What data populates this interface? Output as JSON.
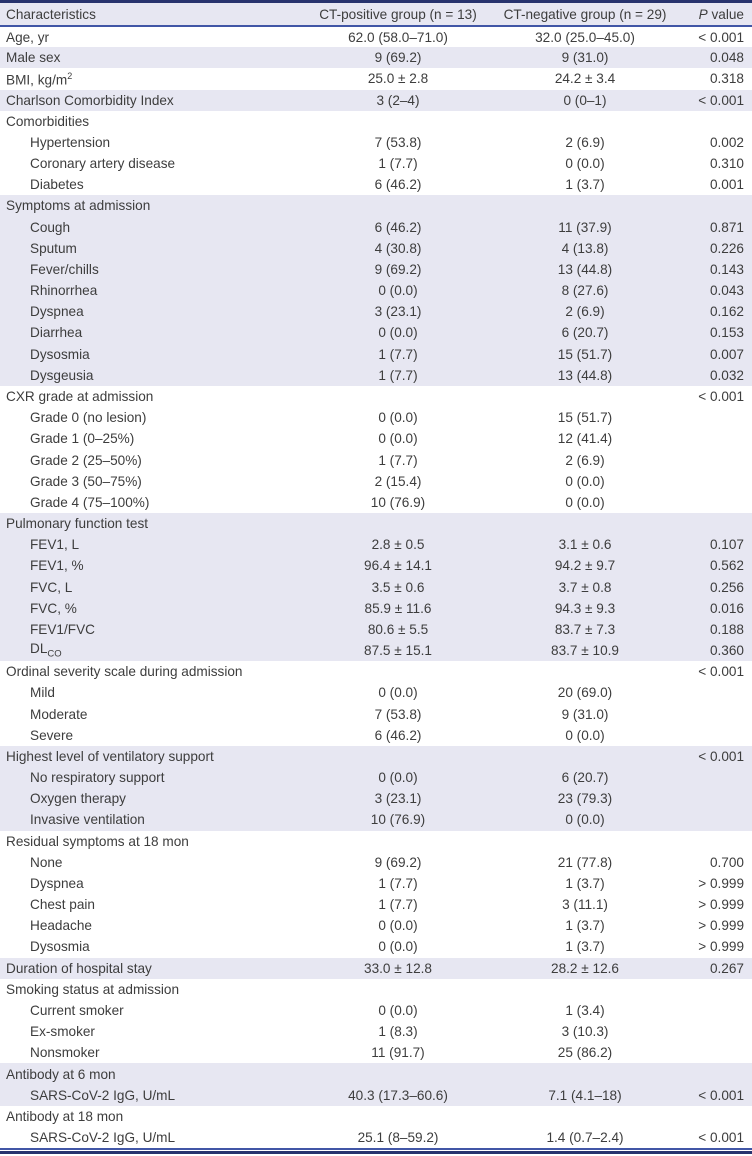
{
  "colors": {
    "top_border_navy": "#28336e",
    "rule_blue": "#4156a6",
    "row_band_lavender": "#e7e7f2",
    "text": "#3d3d3d"
  },
  "table": {
    "header": {
      "characteristics": "Characteristics",
      "group1": "CT-positive group (n = 13)",
      "group2": "CT-negative group (n = 29)",
      "p_italic": "P",
      "p_rest": " value"
    },
    "rows": [
      {
        "label": "Age, yr",
        "indent": false,
        "band": false,
        "g1": "62.0 (58.0–71.0)",
        "g2": "32.0 (25.0–45.0)",
        "p": "< 0.001"
      },
      {
        "label": "Male sex",
        "indent": false,
        "band": true,
        "g1": "9 (69.2)",
        "g2": "9 (31.0)",
        "p": "0.048"
      },
      {
        "label": "BMI, kg/m",
        "label_sup": "2",
        "indent": false,
        "band": false,
        "g1": "25.0 ± 2.8",
        "g2": "24.2 ± 3.4",
        "p": "0.318"
      },
      {
        "label": "Charlson Comorbidity Index",
        "indent": false,
        "band": true,
        "g1": "3 (2–4)",
        "g2": "0 (0–1)",
        "p": "< 0.001"
      },
      {
        "label": "Comorbidities",
        "indent": false,
        "band": false,
        "g1": "",
        "g2": "",
        "p": ""
      },
      {
        "label": "Hypertension",
        "indent": true,
        "band": false,
        "g1": "7 (53.8)",
        "g2": "2 (6.9)",
        "p": "0.002"
      },
      {
        "label": "Coronary artery disease",
        "indent": true,
        "band": false,
        "g1": "1 (7.7)",
        "g2": "0 (0.0)",
        "p": "0.310"
      },
      {
        "label": "Diabetes",
        "indent": true,
        "band": false,
        "g1": "6 (46.2)",
        "g2": "1 (3.7)",
        "p": "0.001"
      },
      {
        "label": "Symptoms at admission",
        "indent": false,
        "band": true,
        "g1": "",
        "g2": "",
        "p": ""
      },
      {
        "label": "Cough",
        "indent": true,
        "band": true,
        "g1": "6 (46.2)",
        "g2": "11 (37.9)",
        "p": "0.871"
      },
      {
        "label": "Sputum",
        "indent": true,
        "band": true,
        "g1": "4 (30.8)",
        "g2": "4 (13.8)",
        "p": "0.226"
      },
      {
        "label": "Fever/chills",
        "indent": true,
        "band": true,
        "g1": "9 (69.2)",
        "g2": "13 (44.8)",
        "p": "0.143"
      },
      {
        "label": "Rhinorrhea",
        "indent": true,
        "band": true,
        "g1": "0 (0.0)",
        "g2": "8 (27.6)",
        "p": "0.043"
      },
      {
        "label": "Dyspnea",
        "indent": true,
        "band": true,
        "g1": "3 (23.1)",
        "g2": "2 (6.9)",
        "p": "0.162"
      },
      {
        "label": "Diarrhea",
        "indent": true,
        "band": true,
        "g1": "0 (0.0)",
        "g2": "6 (20.7)",
        "p": "0.153"
      },
      {
        "label": "Dysosmia",
        "indent": true,
        "band": true,
        "g1": "1 (7.7)",
        "g2": "15 (51.7)",
        "p": "0.007"
      },
      {
        "label": "Dysgeusia",
        "indent": true,
        "band": true,
        "g1": "1 (7.7)",
        "g2": "13 (44.8)",
        "p": "0.032"
      },
      {
        "label": "CXR grade at admission",
        "indent": false,
        "band": false,
        "g1": "",
        "g2": "",
        "p": "< 0.001"
      },
      {
        "label": "Grade 0 (no lesion)",
        "indent": true,
        "band": false,
        "g1": "0 (0.0)",
        "g2": "15 (51.7)",
        "p": ""
      },
      {
        "label": "Grade 1 (0–25%)",
        "indent": true,
        "band": false,
        "g1": "0 (0.0)",
        "g2": "12 (41.4)",
        "p": ""
      },
      {
        "label": "Grade 2 (25–50%)",
        "indent": true,
        "band": false,
        "g1": "1 (7.7)",
        "g2": "2 (6.9)",
        "p": ""
      },
      {
        "label": "Grade 3 (50–75%)",
        "indent": true,
        "band": false,
        "g1": "2 (15.4)",
        "g2": "0 (0.0)",
        "p": ""
      },
      {
        "label": "Grade 4 (75–100%)",
        "indent": true,
        "band": false,
        "g1": "10 (76.9)",
        "g2": "0 (0.0)",
        "p": ""
      },
      {
        "label": "Pulmonary function test",
        "indent": false,
        "band": true,
        "g1": "",
        "g2": "",
        "p": ""
      },
      {
        "label": "FEV1, L",
        "indent": true,
        "band": true,
        "g1": "2.8 ± 0.5",
        "g2": "3.1 ± 0.6",
        "p": "0.107"
      },
      {
        "label": "FEV1, %",
        "indent": true,
        "band": true,
        "g1": "96.4 ± 14.1",
        "g2": "94.2 ± 9.7",
        "p": "0.562"
      },
      {
        "label": "FVC, L",
        "indent": true,
        "band": true,
        "g1": "3.5 ± 0.6",
        "g2": "3.7 ± 0.8",
        "p": "0.256"
      },
      {
        "label": "FVC, %",
        "indent": true,
        "band": true,
        "g1": "85.9 ± 11.6",
        "g2": "94.3 ± 9.3",
        "p": "0.016"
      },
      {
        "label": "FEV1/FVC",
        "indent": true,
        "band": true,
        "g1": "80.6 ± 5.5",
        "g2": "83.7 ± 7.3",
        "p": "0.188"
      },
      {
        "label": "DL",
        "label_sub": "CO",
        "indent": true,
        "band": true,
        "g1": "87.5 ± 15.1",
        "g2": "83.7 ± 10.9",
        "p": "0.360"
      },
      {
        "label": "Ordinal severity scale during admission",
        "indent": false,
        "band": false,
        "g1": "",
        "g2": "",
        "p": "< 0.001"
      },
      {
        "label": "Mild",
        "indent": true,
        "band": false,
        "g1": "0 (0.0)",
        "g2": "20 (69.0)",
        "p": ""
      },
      {
        "label": "Moderate",
        "indent": true,
        "band": false,
        "g1": "7 (53.8)",
        "g2": "9 (31.0)",
        "p": ""
      },
      {
        "label": "Severe",
        "indent": true,
        "band": false,
        "g1": "6 (46.2)",
        "g2": "0 (0.0)",
        "p": ""
      },
      {
        "label": "Highest level of ventilatory support",
        "indent": false,
        "band": true,
        "g1": "",
        "g2": "",
        "p": "< 0.001"
      },
      {
        "label": "No respiratory support",
        "indent": true,
        "band": true,
        "g1": "0 (0.0)",
        "g2": "6 (20.7)",
        "p": ""
      },
      {
        "label": "Oxygen therapy",
        "indent": true,
        "band": true,
        "g1": "3 (23.1)",
        "g2": "23 (79.3)",
        "p": ""
      },
      {
        "label": "Invasive ventilation",
        "indent": true,
        "band": true,
        "g1": "10 (76.9)",
        "g2": "0 (0.0)",
        "p": ""
      },
      {
        "label": "Residual symptoms at 18 mon",
        "indent": false,
        "band": false,
        "g1": "",
        "g2": "",
        "p": ""
      },
      {
        "label": "None",
        "indent": true,
        "band": false,
        "g1": "9 (69.2)",
        "g2": "21 (77.8)",
        "p": "0.700"
      },
      {
        "label": "Dyspnea",
        "indent": true,
        "band": false,
        "g1": "1 (7.7)",
        "g2": "1 (3.7)",
        "p": "> 0.999"
      },
      {
        "label": "Chest pain",
        "indent": true,
        "band": false,
        "g1": "1 (7.7)",
        "g2": "3 (11.1)",
        "p": "> 0.999"
      },
      {
        "label": "Headache",
        "indent": true,
        "band": false,
        "g1": "0 (0.0)",
        "g2": "1 (3.7)",
        "p": "> 0.999"
      },
      {
        "label": "Dysosmia",
        "indent": true,
        "band": false,
        "g1": "0 (0.0)",
        "g2": "1 (3.7)",
        "p": "> 0.999"
      },
      {
        "label": "Duration of hospital stay",
        "indent": false,
        "band": true,
        "g1": "33.0 ± 12.8",
        "g2": "28.2 ± 12.6",
        "p": "0.267"
      },
      {
        "label": "Smoking status at admission",
        "indent": false,
        "band": false,
        "g1": "",
        "g2": "",
        "p": ""
      },
      {
        "label": "Current smoker",
        "indent": true,
        "band": false,
        "g1": "0 (0.0)",
        "g2": "1 (3.4)",
        "p": ""
      },
      {
        "label": "Ex-smoker",
        "indent": true,
        "band": false,
        "g1": "1 (8.3)",
        "g2": "3 (10.3)",
        "p": ""
      },
      {
        "label": "Nonsmoker",
        "indent": true,
        "band": false,
        "g1": "11 (91.7)",
        "g2": "25 (86.2)",
        "p": ""
      },
      {
        "label": "Antibody at 6 mon",
        "indent": false,
        "band": true,
        "g1": "",
        "g2": "",
        "p": ""
      },
      {
        "label": "SARS-CoV-2 IgG, U/mL",
        "indent": true,
        "band": true,
        "g1": "40.3 (17.3–60.6)",
        "g2": "7.1 (4.1–18)",
        "p": "< 0.001"
      },
      {
        "label": "Antibody at 18 mon",
        "indent": false,
        "band": false,
        "g1": "",
        "g2": "",
        "p": ""
      },
      {
        "label": "SARS-CoV-2 IgG, U/mL",
        "indent": true,
        "band": false,
        "g1": "25.1 (8–59.2)",
        "g2": "1.4 (0.7–2.4)",
        "p": "< 0.001"
      }
    ]
  }
}
